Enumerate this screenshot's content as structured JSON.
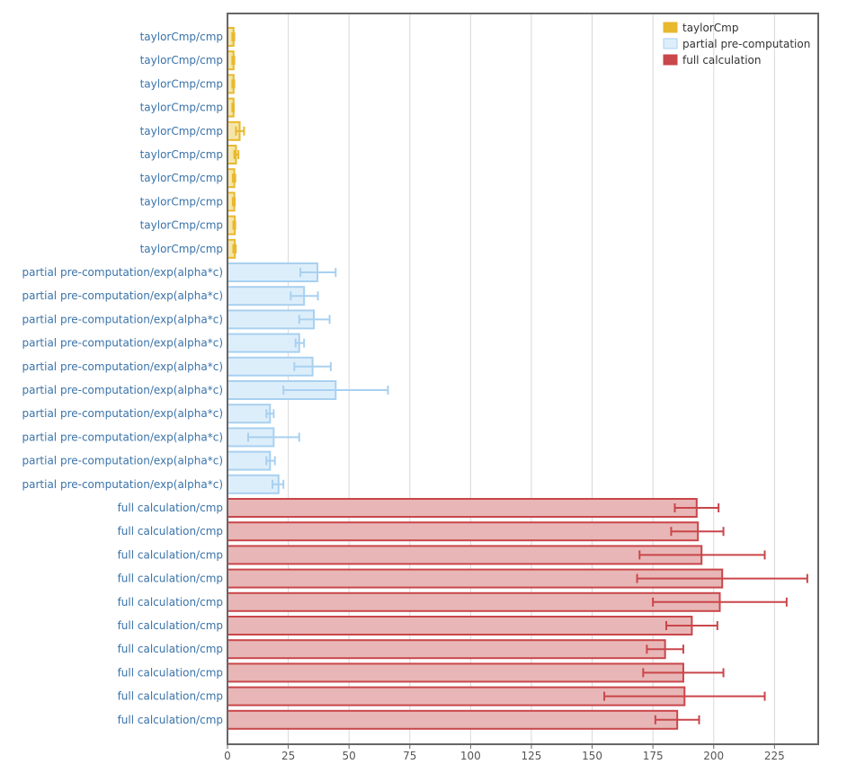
{
  "chart_data": {
    "type": "bar",
    "orientation": "horizontal",
    "xlim": [
      0,
      243
    ],
    "x_ticks": [
      0,
      25,
      50,
      75,
      100,
      125,
      150,
      175,
      200,
      225
    ],
    "grid": true,
    "legend_position": "top-right",
    "series": [
      {
        "name": "taylorCmp",
        "color": "#e8b82e",
        "fill": "#f6e5a8"
      },
      {
        "name": "partial pre-computation",
        "color": "#a8d0f0",
        "fill": "#ddeefb"
      },
      {
        "name": "full calculation",
        "color": "#c9464a",
        "fill": "#e8b6b6"
      }
    ],
    "bars": [
      {
        "label": "taylorCmp/cmp",
        "series": 0,
        "value": 2.5,
        "err_low": 2.0,
        "err_high": 2.8
      },
      {
        "label": "taylorCmp/cmp",
        "series": 0,
        "value": 2.5,
        "err_low": 2.0,
        "err_high": 2.8
      },
      {
        "label": "taylorCmp/cmp",
        "series": 0,
        "value": 2.5,
        "err_low": 2.0,
        "err_high": 2.8
      },
      {
        "label": "taylorCmp/cmp",
        "series": 0,
        "value": 2.5,
        "err_low": 2.0,
        "err_high": 2.6
      },
      {
        "label": "taylorCmp/cmp",
        "series": 0,
        "value": 5.0,
        "err_low": 3.5,
        "err_high": 6.8
      },
      {
        "label": "taylorCmp/cmp",
        "series": 0,
        "value": 3.5,
        "err_low": 2.8,
        "err_high": 4.5
      },
      {
        "label": "taylorCmp/cmp",
        "series": 0,
        "value": 2.8,
        "err_low": 2.2,
        "err_high": 3.2
      },
      {
        "label": "taylorCmp/cmp",
        "series": 0,
        "value": 2.8,
        "err_low": 2.2,
        "err_high": 3.0
      },
      {
        "label": "taylorCmp/cmp",
        "series": 0,
        "value": 3.0,
        "err_low": 2.4,
        "err_high": 3.2
      },
      {
        "label": "taylorCmp/cmp",
        "series": 0,
        "value": 3.0,
        "err_low": 2.4,
        "err_high": 3.4
      },
      {
        "label": "partial pre-computation/exp(alpha*c)",
        "series": 1,
        "value": 37,
        "err_low": 30,
        "err_high": 44.5
      },
      {
        "label": "partial pre-computation/exp(alpha*c)",
        "series": 1,
        "value": 31.5,
        "err_low": 26,
        "err_high": 37.2
      },
      {
        "label": "partial pre-computation/exp(alpha*c)",
        "series": 1,
        "value": 35.5,
        "err_low": 29.5,
        "err_high": 42
      },
      {
        "label": "partial pre-computation/exp(alpha*c)",
        "series": 1,
        "value": 29.5,
        "err_low": 28,
        "err_high": 31.5
      },
      {
        "label": "partial pre-computation/exp(alpha*c)",
        "series": 1,
        "value": 35,
        "err_low": 27.5,
        "err_high": 42.5
      },
      {
        "label": "partial pre-computation/exp(alpha*c)",
        "series": 1,
        "value": 44.5,
        "err_low": 23,
        "err_high": 66
      },
      {
        "label": "partial pre-computation/exp(alpha*c)",
        "series": 1,
        "value": 17.5,
        "err_low": 16,
        "err_high": 19
      },
      {
        "label": "partial pre-computation/exp(alpha*c)",
        "series": 1,
        "value": 19,
        "err_low": 8.5,
        "err_high": 29.5
      },
      {
        "label": "partial pre-computation/exp(alpha*c)",
        "series": 1,
        "value": 17.5,
        "err_low": 16,
        "err_high": 19.5
      },
      {
        "label": "partial pre-computation/exp(alpha*c)",
        "series": 1,
        "value": 21,
        "err_low": 18.5,
        "err_high": 23
      },
      {
        "label": "full calculation/cmp",
        "series": 2,
        "value": 193,
        "err_low": 184,
        "err_high": 202
      },
      {
        "label": "full calculation/cmp",
        "series": 2,
        "value": 193.5,
        "err_low": 182.5,
        "err_high": 204
      },
      {
        "label": "full calculation/cmp",
        "series": 2,
        "value": 195,
        "err_low": 169.5,
        "err_high": 221
      },
      {
        "label": "full calculation/cmp",
        "series": 2,
        "value": 203.5,
        "err_low": 168.5,
        "err_high": 238.5
      },
      {
        "label": "full calculation/cmp",
        "series": 2,
        "value": 202.5,
        "err_low": 175,
        "err_high": 230
      },
      {
        "label": "full calculation/cmp",
        "series": 2,
        "value": 191,
        "err_low": 180.5,
        "err_high": 201.5
      },
      {
        "label": "full calculation/cmp",
        "series": 2,
        "value": 180,
        "err_low": 172.5,
        "err_high": 187.5
      },
      {
        "label": "full calculation/cmp",
        "series": 2,
        "value": 187.5,
        "err_low": 171,
        "err_high": 204
      },
      {
        "label": "full calculation/cmp",
        "series": 2,
        "value": 188,
        "err_low": 155,
        "err_high": 221
      },
      {
        "label": "full calculation/cmp",
        "series": 2,
        "value": 185,
        "err_low": 176,
        "err_high": 194
      }
    ]
  }
}
